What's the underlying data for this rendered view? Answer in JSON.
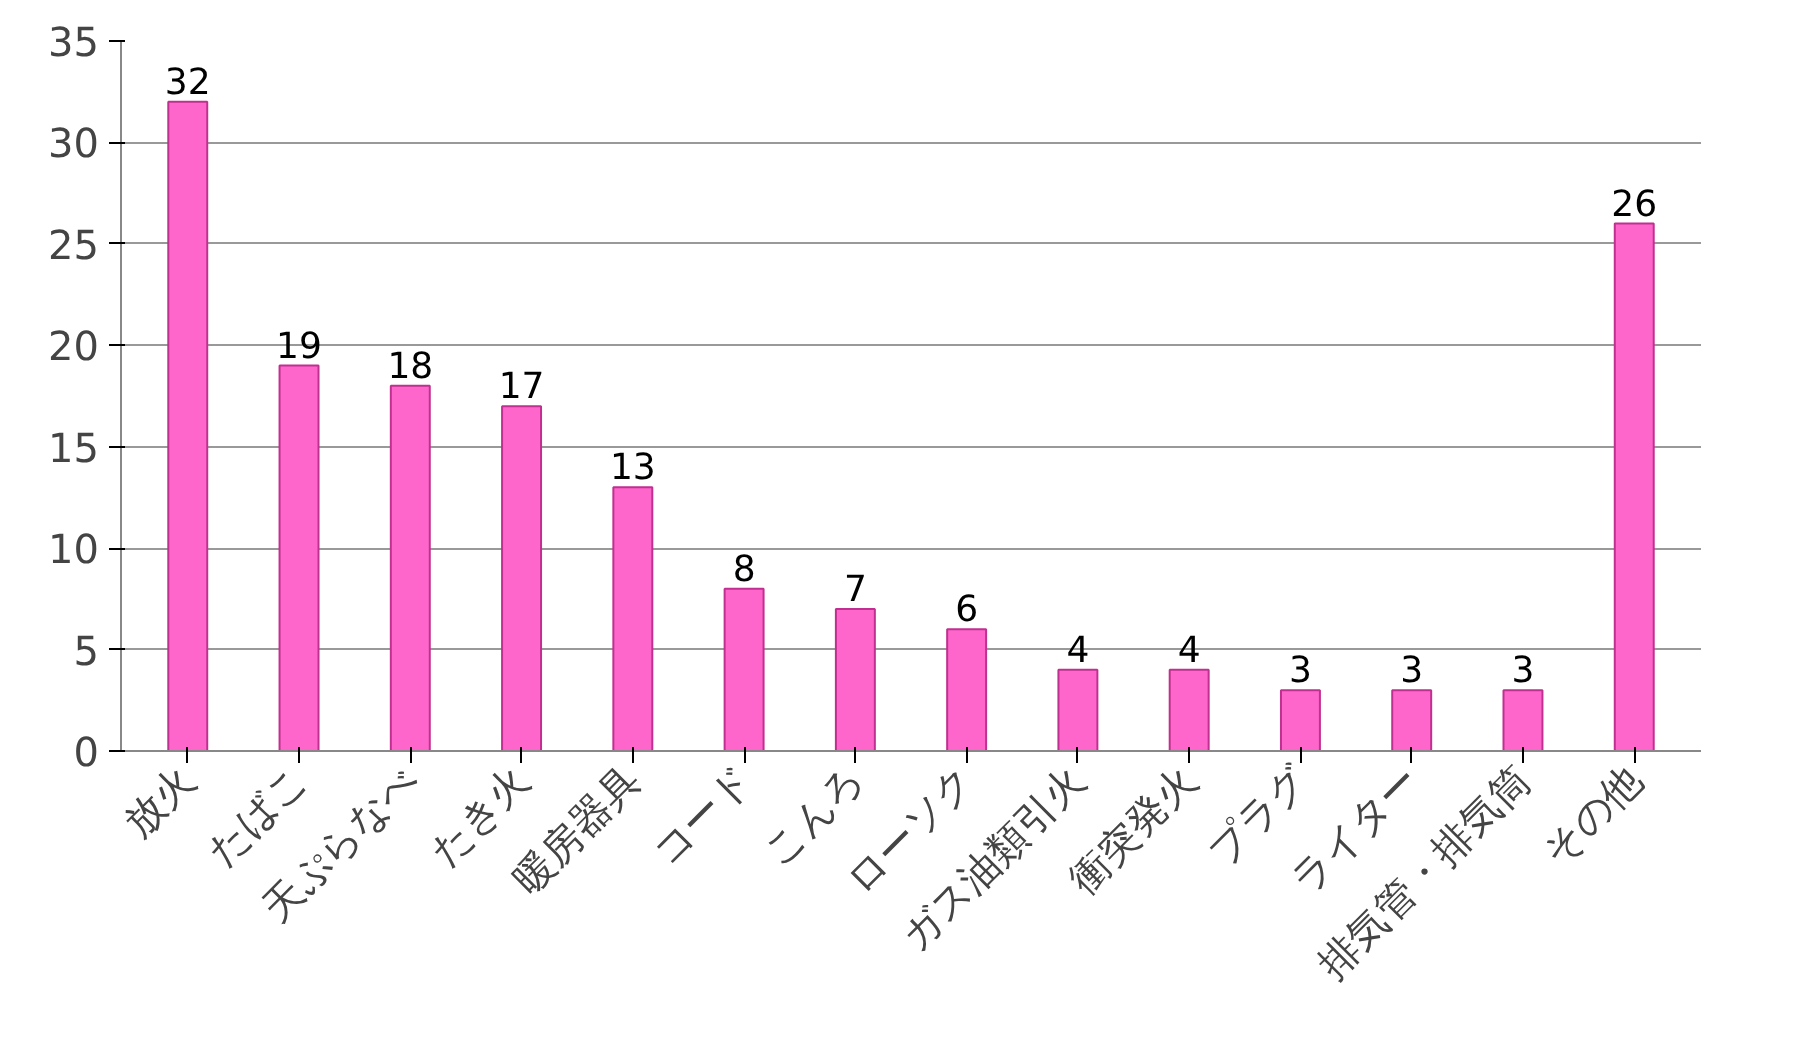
{
  "chart_data": {
    "type": "bar",
    "categories": [
      "放火",
      "たばこ",
      "天ぷらなべ",
      "たき火",
      "暖房器具",
      "コード",
      "こんろ",
      "ローソク",
      "ガス油類引火",
      "衝突発火",
      "プラグ",
      "ライター",
      "排気管・排気筒",
      "その他"
    ],
    "values": [
      32,
      19,
      18,
      17,
      13,
      8,
      7,
      6,
      4,
      4,
      3,
      3,
      3,
      26
    ],
    "color": "#ff66cc",
    "ylim": [
      0,
      35
    ],
    "yticks": [
      0,
      5,
      10,
      15,
      20,
      25,
      30,
      35
    ],
    "grid": "y",
    "data_labels": true
  }
}
